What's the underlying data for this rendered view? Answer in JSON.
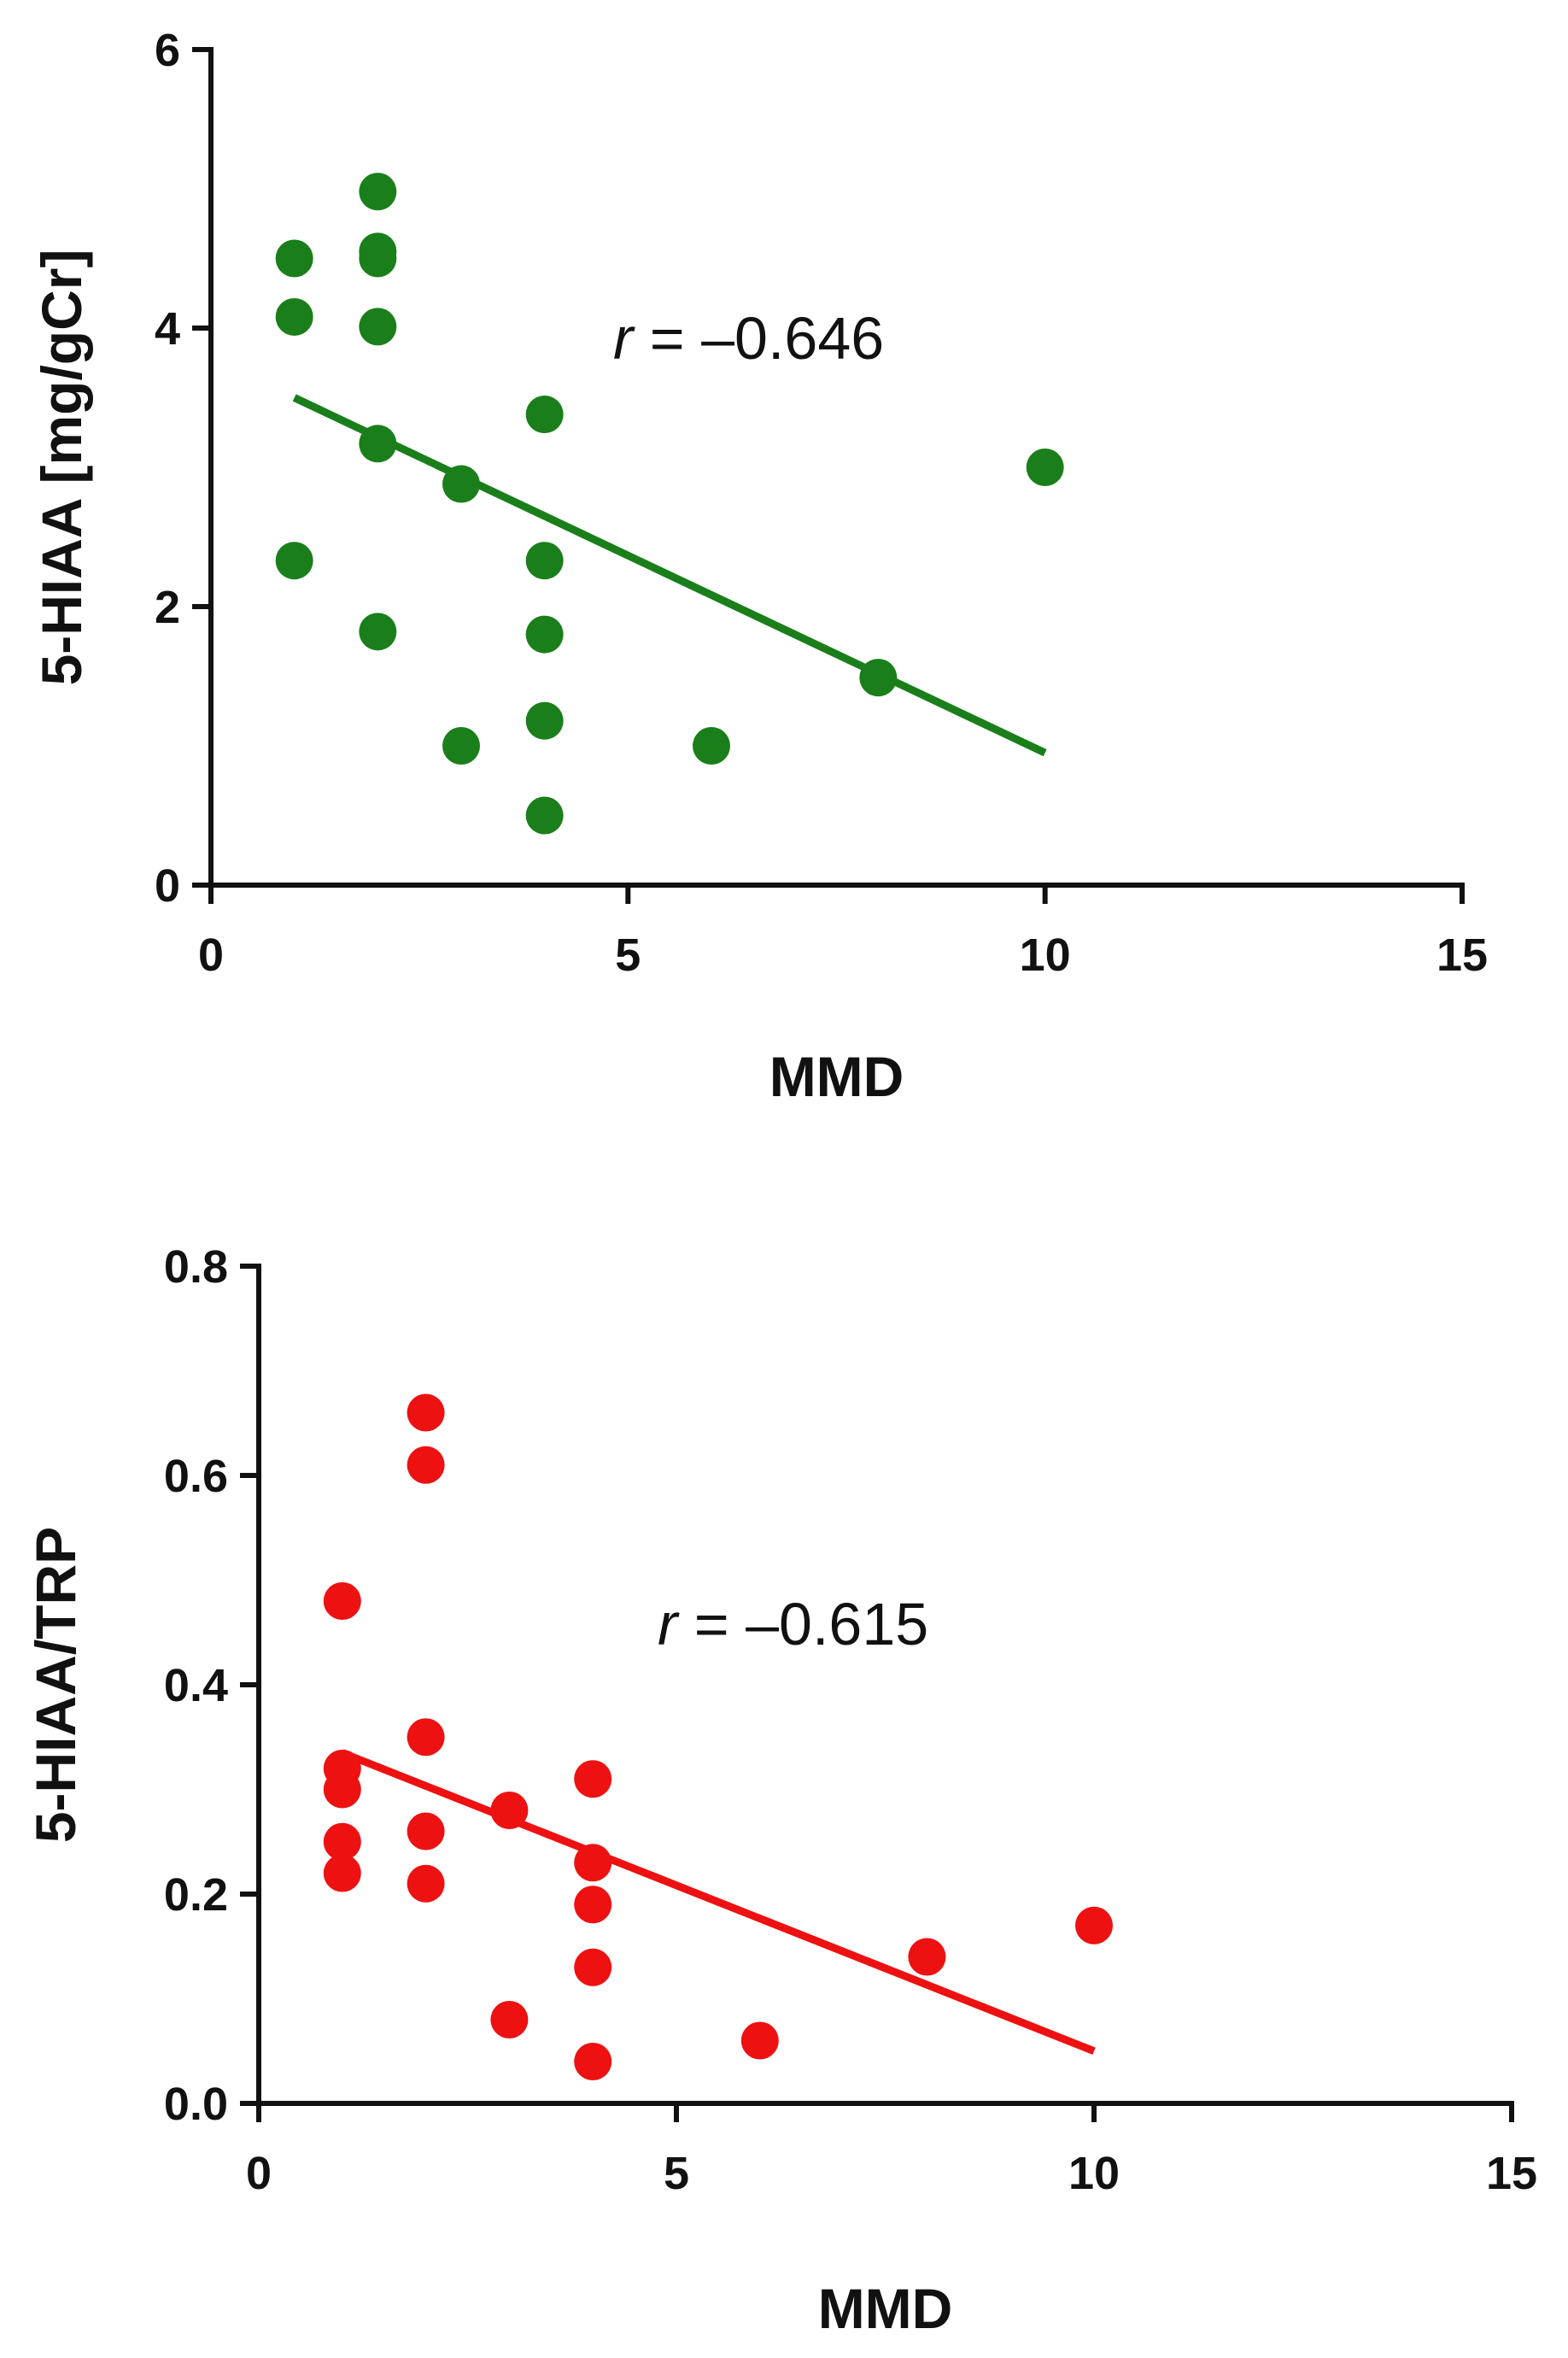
{
  "chart_data": [
    {
      "type": "scatter",
      "xlabel": "MMD",
      "ylabel": "5-HIAA [mg/gCr]",
      "xlim": [
        0,
        15
      ],
      "ylim": [
        0,
        6
      ],
      "xticks": [
        "0",
        "5",
        "10",
        "15"
      ],
      "yticks": [
        "0",
        "2",
        "4",
        "6"
      ],
      "color": "#1a7f1a",
      "annotation": {
        "r_symbol": "r",
        "text": " = –0.646"
      },
      "points": [
        {
          "x": 1,
          "y": 4.5
        },
        {
          "x": 1,
          "y": 4.08
        },
        {
          "x": 1,
          "y": 2.33
        },
        {
          "x": 2,
          "y": 4.98
        },
        {
          "x": 2,
          "y": 4.55
        },
        {
          "x": 2,
          "y": 4.5
        },
        {
          "x": 2,
          "y": 4.01
        },
        {
          "x": 2,
          "y": 3.17
        },
        {
          "x": 2,
          "y": 1.82
        },
        {
          "x": 3,
          "y": 2.88
        },
        {
          "x": 3,
          "y": 1.0
        },
        {
          "x": 4,
          "y": 3.38
        },
        {
          "x": 4,
          "y": 2.33
        },
        {
          "x": 4,
          "y": 1.8
        },
        {
          "x": 4,
          "y": 1.18
        },
        {
          "x": 4,
          "y": 0.5
        },
        {
          "x": 6,
          "y": 1.0
        },
        {
          "x": 8,
          "y": 1.49
        },
        {
          "x": 10,
          "y": 3.0
        }
      ],
      "fit_line": {
        "x1": 1,
        "y1": 3.5,
        "x2": 10,
        "y2": 0.95
      }
    },
    {
      "type": "scatter",
      "xlabel": "MMD",
      "ylabel": "5-HIAA/TRP",
      "xlim": [
        0,
        15
      ],
      "ylim": [
        0,
        0.8
      ],
      "xticks": [
        "0",
        "5",
        "10",
        "15"
      ],
      "yticks": [
        "0.0",
        "0.2",
        "0.4",
        "0.6",
        "0.8"
      ],
      "color": "#ee1111",
      "annotation": {
        "r_symbol": "r",
        "text": " = –0.615"
      },
      "points": [
        {
          "x": 1,
          "y": 0.48
        },
        {
          "x": 1,
          "y": 0.32
        },
        {
          "x": 1,
          "y": 0.3
        },
        {
          "x": 1,
          "y": 0.25
        },
        {
          "x": 1,
          "y": 0.22
        },
        {
          "x": 2,
          "y": 0.66
        },
        {
          "x": 2,
          "y": 0.61
        },
        {
          "x": 2,
          "y": 0.35
        },
        {
          "x": 2,
          "y": 0.26
        },
        {
          "x": 2,
          "y": 0.21
        },
        {
          "x": 3,
          "y": 0.28
        },
        {
          "x": 3,
          "y": 0.08
        },
        {
          "x": 4,
          "y": 0.31
        },
        {
          "x": 4,
          "y": 0.23
        },
        {
          "x": 4,
          "y": 0.19
        },
        {
          "x": 4,
          "y": 0.13
        },
        {
          "x": 4,
          "y": 0.04
        },
        {
          "x": 6,
          "y": 0.06
        },
        {
          "x": 8,
          "y": 0.14
        },
        {
          "x": 10,
          "y": 0.17
        }
      ],
      "fit_line": {
        "x1": 1,
        "y1": 0.335,
        "x2": 10,
        "y2": 0.05
      }
    }
  ]
}
